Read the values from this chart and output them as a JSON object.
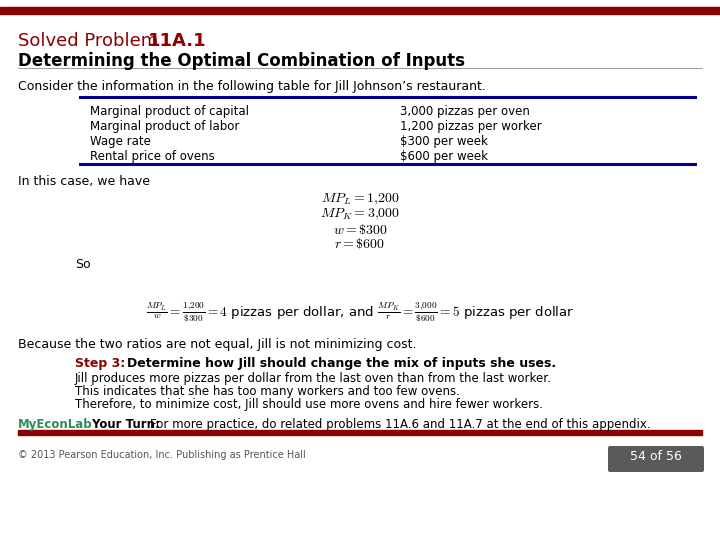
{
  "top_bar_color": "#8B0000",
  "bottom_bar_color": "#8B0000",
  "title_label": "Solved Problem  ",
  "title_bold": "11A.1",
  "subtitle": "Determining the Optimal Combination of Inputs",
  "consider_text": "Consider the information in the following table for Jill Johnson’s restaurant.",
  "table_left": [
    "Marginal product of capital",
    "Marginal product of labor",
    "Wage rate",
    "Rental price of ovens"
  ],
  "table_right": [
    "3,000 pizzas per oven",
    "1,200 pizzas per worker",
    "$300 per week",
    "$600 per week"
  ],
  "table_line_color": "#00008B",
  "in_this_case": "In this case, we have",
  "eq1": "$MP_L = 1{,}200$",
  "eq2": "$MP_K = 3{,}000$",
  "eq3": "$w = \\$300$",
  "eq4": "$r = \\$600$",
  "so_text": "So",
  "because_text": "Because the two ratios are not equal, Jill is not minimizing cost.",
  "step3_label": "Step 3:  ",
  "step3_bold": "Determine how Jill should change the mix of inputs she uses.",
  "step3_line1": "Jill produces more pizzas per dollar from the last oven than from the last worker.",
  "step3_line2": "This indicates that she has too many workers and too few ovens.",
  "step3_line3": "Therefore, to minimize cost, Jill should use more ovens and hire fewer workers.",
  "myeconlab_label": "MyEconLab",
  "your_turn_label": " Your Turn: ",
  "your_turn_text": "For more practice, do related problems 11A.6 and 11A.7 at the end of this appendix.",
  "footer_text": "© 2013 Pearson Education, Inc. Publishing as Prentice Hall",
  "page_num": "54 of 56",
  "bg_color": "#FFFFFF",
  "title_color": "#8B0000",
  "body_color": "#000000",
  "step3_color": "#8B0000",
  "myeconlab_color": "#2E8B57",
  "page_bg_color": "#5a5a5a"
}
